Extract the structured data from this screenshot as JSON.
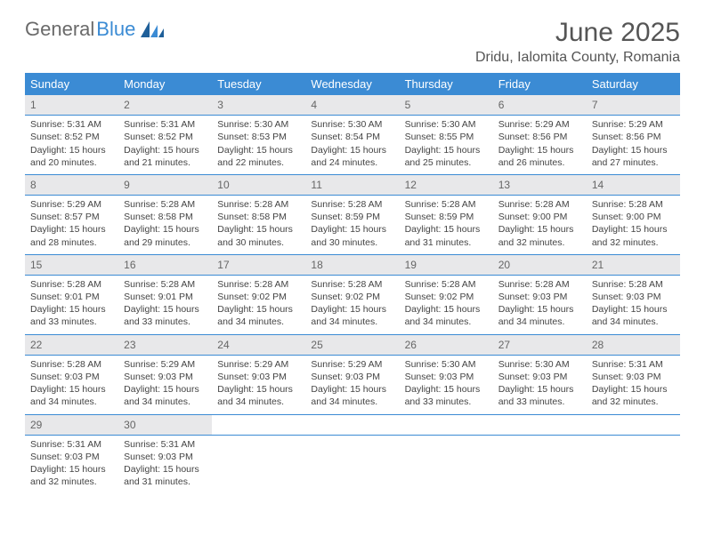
{
  "logo": {
    "text1": "General",
    "text2": "Blue"
  },
  "title": "June 2025",
  "location": "Dridu, Ialomita County, Romania",
  "day_headers": [
    "Sunday",
    "Monday",
    "Tuesday",
    "Wednesday",
    "Thursday",
    "Friday",
    "Saturday"
  ],
  "colors": {
    "header_bg": "#3b8bd4",
    "header_fg": "#ffffff",
    "daynum_bg": "#e8e8ea",
    "border": "#3b8bd4",
    "text": "#444444",
    "logo_gray": "#6a6a6a",
    "logo_blue": "#3b8bd4"
  },
  "weeks": [
    [
      {
        "num": "1",
        "sunrise": "Sunrise: 5:31 AM",
        "sunset": "Sunset: 8:52 PM",
        "daylight": "Daylight: 15 hours and 20 minutes."
      },
      {
        "num": "2",
        "sunrise": "Sunrise: 5:31 AM",
        "sunset": "Sunset: 8:52 PM",
        "daylight": "Daylight: 15 hours and 21 minutes."
      },
      {
        "num": "3",
        "sunrise": "Sunrise: 5:30 AM",
        "sunset": "Sunset: 8:53 PM",
        "daylight": "Daylight: 15 hours and 22 minutes."
      },
      {
        "num": "4",
        "sunrise": "Sunrise: 5:30 AM",
        "sunset": "Sunset: 8:54 PM",
        "daylight": "Daylight: 15 hours and 24 minutes."
      },
      {
        "num": "5",
        "sunrise": "Sunrise: 5:30 AM",
        "sunset": "Sunset: 8:55 PM",
        "daylight": "Daylight: 15 hours and 25 minutes."
      },
      {
        "num": "6",
        "sunrise": "Sunrise: 5:29 AM",
        "sunset": "Sunset: 8:56 PM",
        "daylight": "Daylight: 15 hours and 26 minutes."
      },
      {
        "num": "7",
        "sunrise": "Sunrise: 5:29 AM",
        "sunset": "Sunset: 8:56 PM",
        "daylight": "Daylight: 15 hours and 27 minutes."
      }
    ],
    [
      {
        "num": "8",
        "sunrise": "Sunrise: 5:29 AM",
        "sunset": "Sunset: 8:57 PM",
        "daylight": "Daylight: 15 hours and 28 minutes."
      },
      {
        "num": "9",
        "sunrise": "Sunrise: 5:28 AM",
        "sunset": "Sunset: 8:58 PM",
        "daylight": "Daylight: 15 hours and 29 minutes."
      },
      {
        "num": "10",
        "sunrise": "Sunrise: 5:28 AM",
        "sunset": "Sunset: 8:58 PM",
        "daylight": "Daylight: 15 hours and 30 minutes."
      },
      {
        "num": "11",
        "sunrise": "Sunrise: 5:28 AM",
        "sunset": "Sunset: 8:59 PM",
        "daylight": "Daylight: 15 hours and 30 minutes."
      },
      {
        "num": "12",
        "sunrise": "Sunrise: 5:28 AM",
        "sunset": "Sunset: 8:59 PM",
        "daylight": "Daylight: 15 hours and 31 minutes."
      },
      {
        "num": "13",
        "sunrise": "Sunrise: 5:28 AM",
        "sunset": "Sunset: 9:00 PM",
        "daylight": "Daylight: 15 hours and 32 minutes."
      },
      {
        "num": "14",
        "sunrise": "Sunrise: 5:28 AM",
        "sunset": "Sunset: 9:00 PM",
        "daylight": "Daylight: 15 hours and 32 minutes."
      }
    ],
    [
      {
        "num": "15",
        "sunrise": "Sunrise: 5:28 AM",
        "sunset": "Sunset: 9:01 PM",
        "daylight": "Daylight: 15 hours and 33 minutes."
      },
      {
        "num": "16",
        "sunrise": "Sunrise: 5:28 AM",
        "sunset": "Sunset: 9:01 PM",
        "daylight": "Daylight: 15 hours and 33 minutes."
      },
      {
        "num": "17",
        "sunrise": "Sunrise: 5:28 AM",
        "sunset": "Sunset: 9:02 PM",
        "daylight": "Daylight: 15 hours and 34 minutes."
      },
      {
        "num": "18",
        "sunrise": "Sunrise: 5:28 AM",
        "sunset": "Sunset: 9:02 PM",
        "daylight": "Daylight: 15 hours and 34 minutes."
      },
      {
        "num": "19",
        "sunrise": "Sunrise: 5:28 AM",
        "sunset": "Sunset: 9:02 PM",
        "daylight": "Daylight: 15 hours and 34 minutes."
      },
      {
        "num": "20",
        "sunrise": "Sunrise: 5:28 AM",
        "sunset": "Sunset: 9:03 PM",
        "daylight": "Daylight: 15 hours and 34 minutes."
      },
      {
        "num": "21",
        "sunrise": "Sunrise: 5:28 AM",
        "sunset": "Sunset: 9:03 PM",
        "daylight": "Daylight: 15 hours and 34 minutes."
      }
    ],
    [
      {
        "num": "22",
        "sunrise": "Sunrise: 5:28 AM",
        "sunset": "Sunset: 9:03 PM",
        "daylight": "Daylight: 15 hours and 34 minutes."
      },
      {
        "num": "23",
        "sunrise": "Sunrise: 5:29 AM",
        "sunset": "Sunset: 9:03 PM",
        "daylight": "Daylight: 15 hours and 34 minutes."
      },
      {
        "num": "24",
        "sunrise": "Sunrise: 5:29 AM",
        "sunset": "Sunset: 9:03 PM",
        "daylight": "Daylight: 15 hours and 34 minutes."
      },
      {
        "num": "25",
        "sunrise": "Sunrise: 5:29 AM",
        "sunset": "Sunset: 9:03 PM",
        "daylight": "Daylight: 15 hours and 34 minutes."
      },
      {
        "num": "26",
        "sunrise": "Sunrise: 5:30 AM",
        "sunset": "Sunset: 9:03 PM",
        "daylight": "Daylight: 15 hours and 33 minutes."
      },
      {
        "num": "27",
        "sunrise": "Sunrise: 5:30 AM",
        "sunset": "Sunset: 9:03 PM",
        "daylight": "Daylight: 15 hours and 33 minutes."
      },
      {
        "num": "28",
        "sunrise": "Sunrise: 5:31 AM",
        "sunset": "Sunset: 9:03 PM",
        "daylight": "Daylight: 15 hours and 32 minutes."
      }
    ],
    [
      {
        "num": "29",
        "sunrise": "Sunrise: 5:31 AM",
        "sunset": "Sunset: 9:03 PM",
        "daylight": "Daylight: 15 hours and 32 minutes."
      },
      {
        "num": "30",
        "sunrise": "Sunrise: 5:31 AM",
        "sunset": "Sunset: 9:03 PM",
        "daylight": "Daylight: 15 hours and 31 minutes."
      },
      null,
      null,
      null,
      null,
      null
    ]
  ]
}
